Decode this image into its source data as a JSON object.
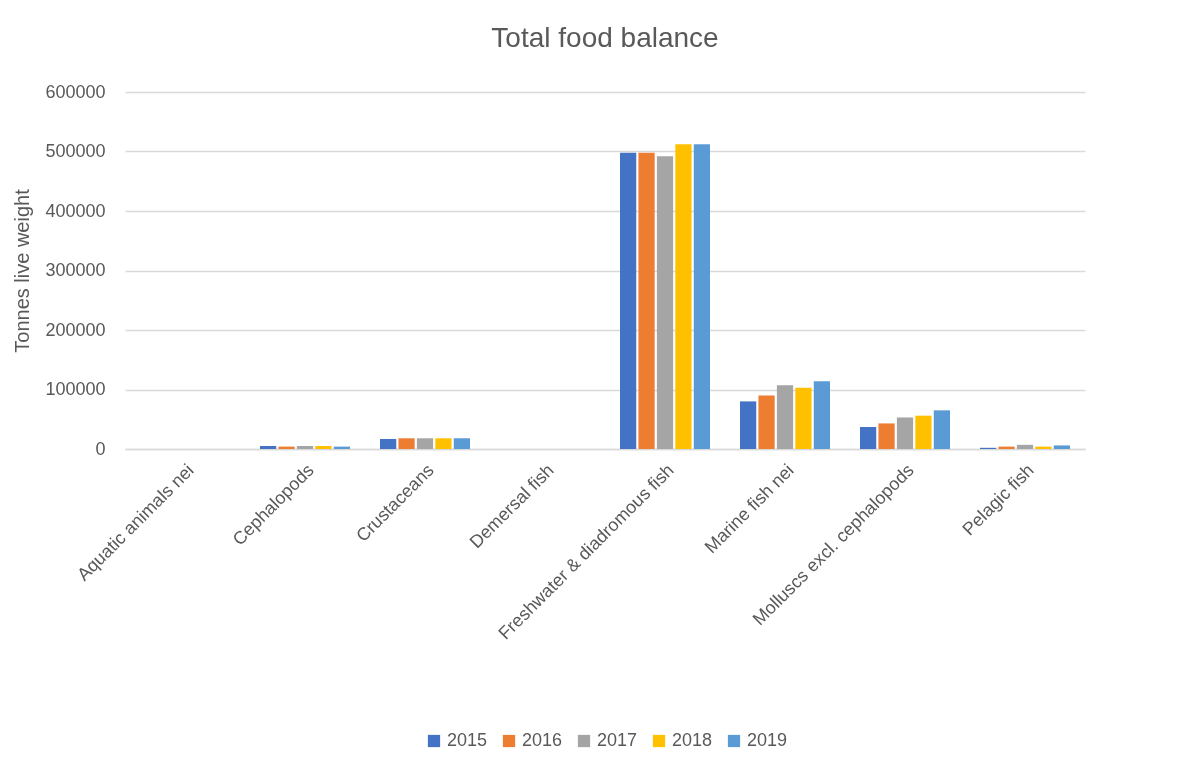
{
  "chart_data": {
    "type": "bar",
    "title": "Total food balance",
    "ylabel": "Tonnes live weight",
    "categories": [
      "Aquatic animals nei",
      "Cephalopods",
      "Crustaceans",
      "Demersal fish",
      "Freshwater & diadromous fish",
      "Marine fish nei",
      "Molluscs excl. cephalopods",
      "Pelagic fish"
    ],
    "series": [
      {
        "name": "2015",
        "color": "#4472c4",
        "values": [
          0,
          5000,
          17000,
          0,
          498000,
          80000,
          37000,
          2000
        ]
      },
      {
        "name": "2016",
        "color": "#ed7d31",
        "values": [
          0,
          4000,
          18000,
          0,
          498000,
          90000,
          43000,
          4000
        ]
      },
      {
        "name": "2017",
        "color": "#a5a5a5",
        "values": [
          0,
          5000,
          18000,
          0,
          492000,
          107000,
          53000,
          7000
        ]
      },
      {
        "name": "2018",
        "color": "#ffc000",
        "values": [
          0,
          5000,
          18000,
          0,
          512000,
          103000,
          56000,
          4000
        ]
      },
      {
        "name": "2019",
        "color": "#5b9bd5",
        "values": [
          0,
          4000,
          18000,
          0,
          512000,
          114000,
          65000,
          6000
        ]
      }
    ],
    "ylim": [
      0,
      600000
    ],
    "yticks": [
      0,
      100000,
      200000,
      300000,
      400000,
      500000,
      600000
    ],
    "grid": "y",
    "legend": "bottom"
  }
}
